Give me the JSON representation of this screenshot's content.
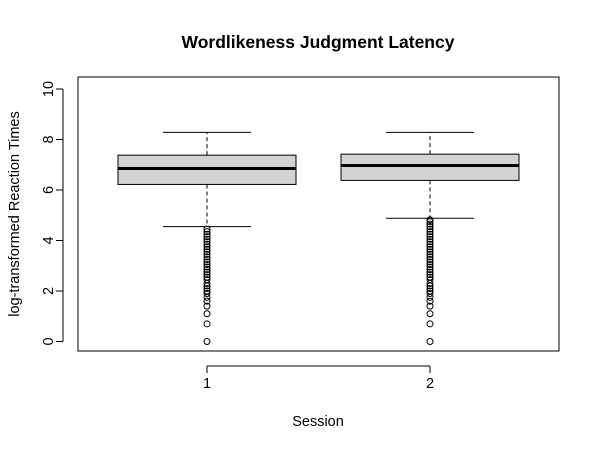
{
  "chart_data": {
    "type": "boxplot",
    "title": "Wordlikeness Judgment Latency",
    "xlabel": "Session",
    "ylabel": "log-transformed Reaction Times",
    "categories": [
      "1",
      "2"
    ],
    "ylim": [
      0,
      10
    ],
    "yticks": [
      0,
      2,
      4,
      6,
      8,
      10
    ],
    "grid": false,
    "legend": "none",
    "box_fill": "#d3d3d3",
    "line_color": "#000000",
    "boxes": [
      {
        "label": "1",
        "whisker_low": 4.55,
        "q1": 6.22,
        "median": 6.85,
        "q3": 7.38,
        "whisker_high": 8.28,
        "outliers": [
          0.0,
          0.7,
          1.1,
          1.4,
          1.6,
          1.75,
          1.9,
          2.0,
          2.1,
          2.2,
          2.3,
          2.45,
          2.55,
          2.65,
          2.75,
          2.85,
          2.95,
          3.05,
          3.15,
          3.25,
          3.35,
          3.45,
          3.55,
          3.65,
          3.75,
          3.85,
          3.95,
          4.05,
          4.15,
          4.25,
          4.35,
          4.45
        ]
      },
      {
        "label": "2",
        "whisker_low": 4.88,
        "q1": 6.38,
        "median": 6.97,
        "q3": 7.42,
        "whisker_high": 8.28,
        "outliers": [
          0.0,
          0.7,
          1.1,
          1.4,
          1.6,
          1.75,
          1.9,
          2.0,
          2.1,
          2.2,
          2.3,
          2.45,
          2.55,
          2.65,
          2.75,
          2.85,
          2.95,
          3.05,
          3.15,
          3.25,
          3.35,
          3.45,
          3.55,
          3.65,
          3.75,
          3.85,
          3.95,
          4.05,
          4.15,
          4.25,
          4.35,
          4.45,
          4.55,
          4.65,
          4.75,
          4.82
        ]
      }
    ]
  }
}
